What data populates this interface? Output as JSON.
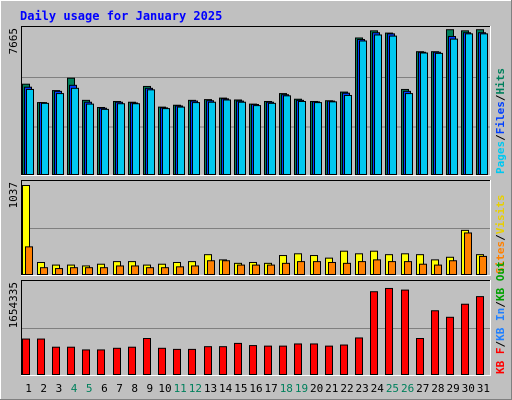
{
  "chart_data": {
    "type": "bar",
    "title": "Daily usage for January 2025",
    "categories": [
      "1",
      "2",
      "3",
      "4",
      "5",
      "6",
      "7",
      "8",
      "9",
      "10",
      "11",
      "12",
      "13",
      "14",
      "15",
      "16",
      "17",
      "18",
      "19",
      "20",
      "21",
      "22",
      "23",
      "24",
      "25",
      "26",
      "27",
      "28",
      "29",
      "30",
      "31"
    ],
    "weekend_days": [
      "4",
      "5",
      "11",
      "12",
      "18",
      "19",
      "25",
      "26"
    ],
    "panels": [
      {
        "id": "hits",
        "max_label": "7665",
        "ymax": 7665,
        "legend": [
          {
            "name": "Hits",
            "color": "#00805c"
          },
          {
            "name": "/",
            "color": "#000000"
          },
          {
            "name": "Files",
            "color": "#0040ff"
          },
          {
            "name": "/",
            "color": "#000000"
          },
          {
            "name": "Pages",
            "color": "#00c8f0"
          }
        ],
        "series": [
          {
            "name": "Hits",
            "color": "#00805c",
            "values": [
              4860,
              3880,
              4520,
              5180,
              4000,
              3620,
              3940,
              3900,
              4740,
              3640,
              3740,
              4000,
              4040,
              4120,
              4020,
              3800,
              3940,
              4360,
              4060,
              3940,
              3980,
              4440,
              7320,
              7700,
              7580,
              4580,
              6590,
              6590,
              7760,
              7700,
              7760
            ]
          },
          {
            "name": "Files",
            "color": "#0040ff",
            "values": [
              4700,
              3880,
              4480,
              4800,
              3900,
              3580,
              3900,
              3860,
              4640,
              3600,
              3700,
              3960,
              3980,
              4080,
              3960,
              3780,
              3900,
              4300,
              4000,
              3920,
              3960,
              4380,
              7240,
              7600,
              7540,
              4480,
              6560,
              6560,
              7400,
              7600,
              7600
            ]
          },
          {
            "name": "Pages",
            "color": "#00c8f0",
            "values": [
              4580,
              3840,
              4360,
              4640,
              3800,
              3520,
              3820,
              3820,
              4560,
              3560,
              3640,
              3880,
              3900,
              4020,
              3900,
              3720,
              3840,
              4240,
              3940,
              3880,
              3920,
              4260,
              7160,
              7480,
              7420,
              4360,
              6520,
              6500,
              7260,
              7540,
              7540
            ]
          }
        ]
      },
      {
        "id": "visits",
        "max_label": "1037",
        "ymax": 1037,
        "legend": [
          {
            "name": "Visits",
            "color": "#e8d000"
          },
          {
            "name": "/",
            "color": "#000000"
          },
          {
            "name": "Sites",
            "color": "#ff8000"
          }
        ],
        "series": [
          {
            "name": "Visits",
            "color": "#ffff00",
            "values": [
              1037,
              150,
              120,
              120,
              110,
              130,
              160,
              160,
              120,
              130,
              150,
              160,
              240,
              180,
              140,
              150,
              140,
              230,
              250,
              230,
              200,
              280,
              250,
              280,
              240,
              250,
              240,
              180,
              210,
              520,
              240
            ]
          },
          {
            "name": "Sites",
            "color": "#ff8000",
            "values": [
              330,
              90,
              80,
              90,
              90,
              90,
              110,
              110,
              90,
              90,
              100,
              110,
              170,
              170,
              120,
              120,
              120,
              140,
              160,
              160,
              150,
              140,
              160,
              180,
              160,
              160,
              130,
              120,
              170,
              490,
              220
            ]
          }
        ]
      },
      {
        "id": "kbytes",
        "max_label": "1654335",
        "ymax": 1654335,
        "legend": [
          {
            "name": "KB Out",
            "color": "#00a000"
          },
          {
            "name": "/",
            "color": "#000000"
          },
          {
            "name": "KB In",
            "color": "#2080ff"
          },
          {
            "name": "/",
            "color": "#000000"
          },
          {
            "name": "KB F",
            "color": "#ff0000"
          }
        ],
        "series": [
          {
            "name": "KB F",
            "color": "#ff0000",
            "values": [
              670000,
              670000,
              520000,
              520000,
              470000,
              470000,
              500000,
              520000,
              680000,
              500000,
              480000,
              480000,
              530000,
              530000,
              590000,
              550000,
              540000,
              540000,
              580000,
              580000,
              540000,
              560000,
              690000,
              1540000,
              1600000,
              1570000,
              680000,
              1190000,
              1070000,
              1310000,
              1450000
            ]
          }
        ]
      }
    ]
  }
}
